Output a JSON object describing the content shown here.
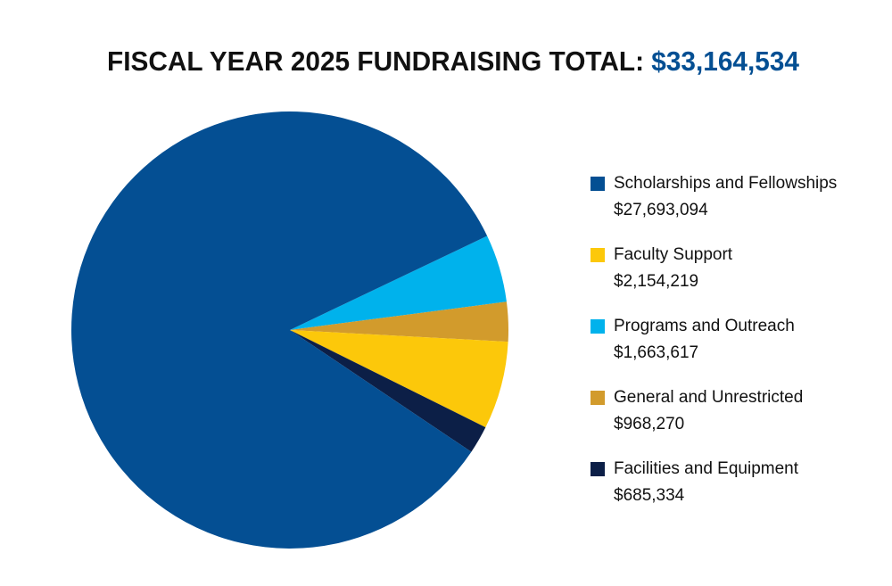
{
  "chart_data": {
    "type": "pie",
    "title": "FISCAL YEAR 2025 FUNDRAISING TOTAL:",
    "title_value": "$33,164,534",
    "categories": [
      "Scholarships and Fellowships",
      "Faculty Support",
      "Programs and Outreach",
      "General and Unrestricted",
      "Facilities and Equipment"
    ],
    "values": [
      27693094,
      2154219,
      1663617,
      968270,
      685334
    ],
    "value_labels": [
      "$27,693,094",
      "$2,154,219",
      "$1,663,617",
      "$968,270",
      "$685,334"
    ],
    "colors": [
      "#044f93",
      "#fcc80a",
      "#00b2ec",
      "#d29b2c",
      "#0c1f47"
    ],
    "title_value_color": "#044f93",
    "legend": "right"
  }
}
